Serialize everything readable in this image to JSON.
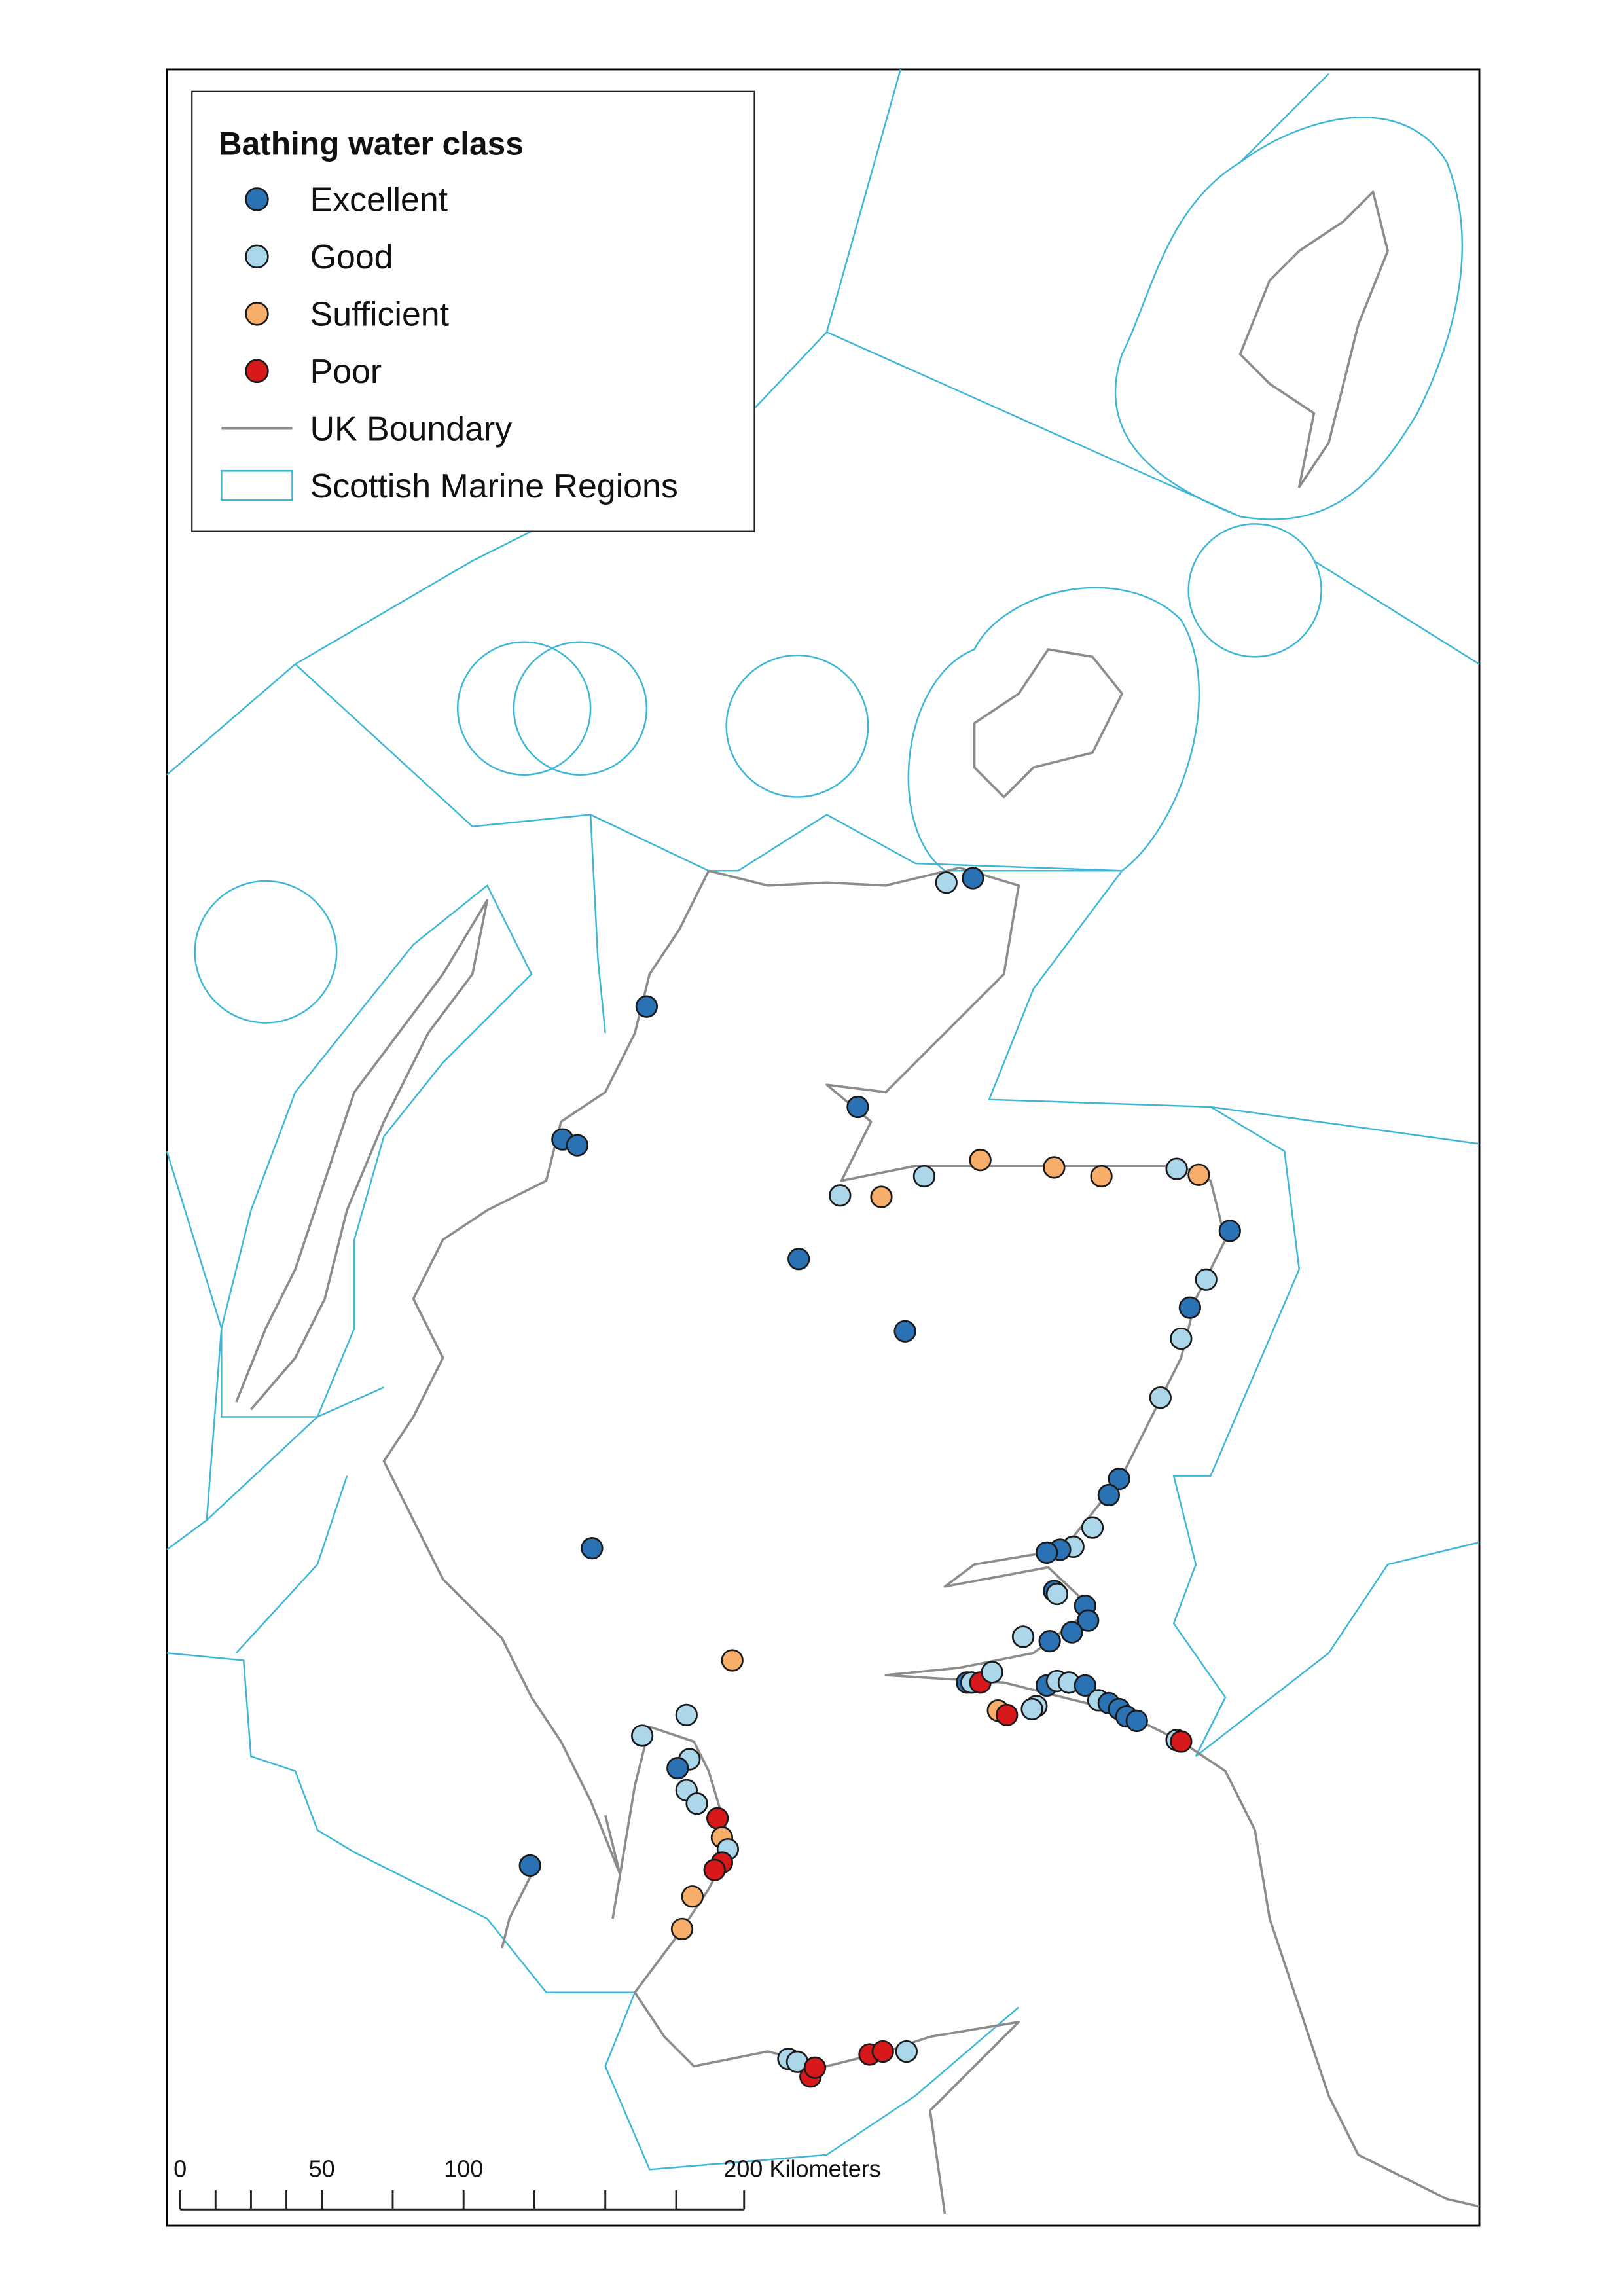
{
  "legend": {
    "title": "Bathing water class",
    "items": [
      {
        "label": "Excellent",
        "color": "#2b72b5"
      },
      {
        "label": "Good",
        "color": "#acd6ea"
      },
      {
        "label": "Sufficient",
        "color": "#f7ae6a"
      },
      {
        "label": "Poor",
        "color": "#d7191c"
      },
      {
        "label": "UK Boundary",
        "color": "#8c8c8c"
      },
      {
        "label": "Scottish Marine Regions",
        "color": "#3fb6d6"
      }
    ]
  },
  "scale_bar": {
    "labels": [
      "0",
      "50",
      "100",
      "200 Kilometers"
    ]
  }
}
